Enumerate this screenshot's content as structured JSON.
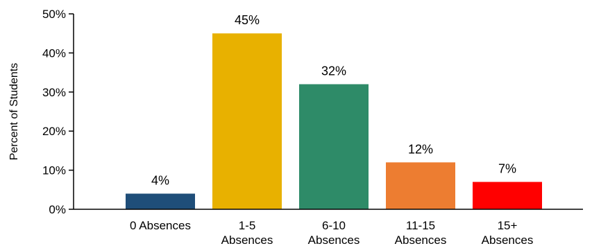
{
  "chart_data": {
    "type": "bar",
    "title": "",
    "xlabel": "",
    "ylabel": "Percent of Students",
    "categories": [
      [
        "0 Absences"
      ],
      [
        "1-5",
        "Absences"
      ],
      [
        "6-10",
        "Absences"
      ],
      [
        "11-15",
        "Absences"
      ],
      [
        "15+",
        "Absences"
      ]
    ],
    "values": [
      4,
      45,
      32,
      12,
      7
    ],
    "data_labels": [
      "4%",
      "45%",
      "32%",
      "12%",
      "7%"
    ],
    "colors": [
      "#1f4e79",
      "#e8b100",
      "#2e8b68",
      "#ed7d31",
      "#ff0000"
    ],
    "ylim": [
      0,
      50
    ],
    "yticks": [
      0,
      10,
      20,
      30,
      40,
      50
    ],
    "ytick_labels": [
      "0%",
      "10%",
      "20%",
      "30%",
      "40%",
      "50%"
    ],
    "grid": false,
    "legend": "none"
  }
}
